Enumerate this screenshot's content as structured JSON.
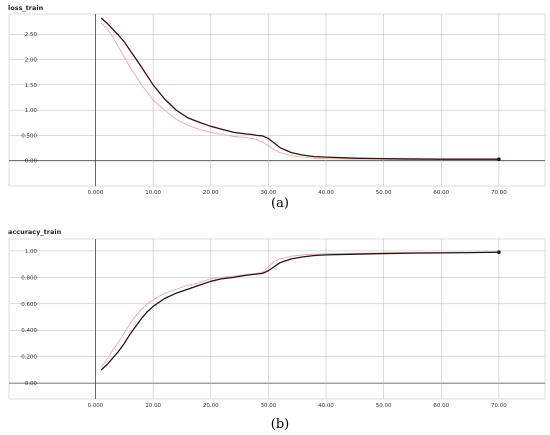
{
  "chart_data": [
    {
      "type": "line",
      "title": "loss_train",
      "caption": "(a)",
      "xlim": [
        -15,
        78
      ],
      "ylim": [
        -0.5,
        2.9
      ],
      "x_ticks": [
        0,
        10,
        20,
        30,
        40,
        50,
        60,
        70
      ],
      "x_tick_labels": [
        "0.000",
        "10.00",
        "20.00",
        "30.00",
        "40.00",
        "50.00",
        "60.00",
        "70.00"
      ],
      "y_ticks": [
        0,
        0.5,
        1.0,
        1.5,
        2.0,
        2.5
      ],
      "y_tick_labels": [
        "0.00",
        "0.500",
        "1.00",
        "1.50",
        "2.00",
        "2.50"
      ],
      "grid": true,
      "colors": {
        "main": "#3a0f0f",
        "raw": "#f0aaaa"
      },
      "series": [
        {
          "role": "smoothed",
          "x": [
            1,
            2,
            3,
            4,
            5,
            6,
            8,
            10,
            12,
            14,
            16,
            18,
            20,
            22,
            24,
            26,
            27,
            28,
            29,
            30,
            31,
            32,
            34,
            36,
            38,
            40,
            45,
            50,
            55,
            60,
            65,
            70
          ],
          "y": [
            2.82,
            2.72,
            2.6,
            2.48,
            2.35,
            2.18,
            1.85,
            1.5,
            1.22,
            1.0,
            0.85,
            0.76,
            0.68,
            0.62,
            0.56,
            0.53,
            0.52,
            0.5,
            0.49,
            0.44,
            0.35,
            0.26,
            0.16,
            0.11,
            0.08,
            0.07,
            0.05,
            0.04,
            0.035,
            0.03,
            0.03,
            0.03
          ]
        },
        {
          "role": "raw",
          "x": [
            1,
            2,
            3,
            4,
            5,
            6,
            8,
            10,
            12,
            14,
            16,
            18,
            20,
            22,
            24,
            26,
            28,
            29,
            30,
            31,
            32,
            34,
            36,
            38,
            40,
            45,
            50,
            55,
            60,
            65,
            70
          ],
          "y": [
            2.72,
            2.62,
            2.45,
            2.25,
            2.05,
            1.85,
            1.5,
            1.2,
            1.0,
            0.82,
            0.7,
            0.62,
            0.56,
            0.52,
            0.48,
            0.46,
            0.42,
            0.36,
            0.3,
            0.22,
            0.16,
            0.1,
            0.07,
            0.05,
            0.04,
            0.03,
            0.03,
            0.02,
            0.02,
            0.02,
            0.02
          ]
        }
      ]
    },
    {
      "type": "line",
      "title": "accuracy_train",
      "caption": "(b)",
      "xlim": [
        -15,
        78
      ],
      "ylim": [
        -0.12,
        1.09
      ],
      "x_ticks": [
        0,
        10,
        20,
        30,
        40,
        50,
        60,
        70
      ],
      "x_tick_labels": [
        "0.000",
        "10.00",
        "20.00",
        "30.00",
        "40.00",
        "50.00",
        "60.00",
        "70.00"
      ],
      "y_ticks": [
        0,
        0.2,
        0.4,
        0.6,
        0.8,
        1.0
      ],
      "y_tick_labels": [
        "0.00",
        "0.200",
        "0.400",
        "0.600",
        "0.800",
        "1.00"
      ],
      "grid": true,
      "colors": {
        "main": "#1a1a1a",
        "raw": "#f0aaaa"
      },
      "series": [
        {
          "role": "smoothed",
          "x": [
            1,
            2,
            3,
            4,
            5,
            6,
            7,
            8,
            9,
            10,
            12,
            14,
            16,
            18,
            20,
            22,
            24,
            26,
            28,
            29,
            30,
            31,
            32,
            34,
            36,
            38,
            40,
            45,
            50,
            55,
            60,
            65,
            70
          ],
          "y": [
            0.1,
            0.14,
            0.19,
            0.24,
            0.3,
            0.37,
            0.43,
            0.49,
            0.54,
            0.58,
            0.64,
            0.68,
            0.71,
            0.74,
            0.77,
            0.79,
            0.8,
            0.815,
            0.825,
            0.83,
            0.85,
            0.88,
            0.91,
            0.94,
            0.955,
            0.965,
            0.97,
            0.975,
            0.98,
            0.983,
            0.985,
            0.987,
            0.99
          ]
        },
        {
          "role": "raw",
          "x": [
            1,
            2,
            3,
            4,
            5,
            6,
            7,
            8,
            9,
            10,
            12,
            14,
            16,
            18,
            20,
            22,
            24,
            26,
            28,
            29,
            30,
            31,
            32,
            34,
            36,
            38,
            40,
            45,
            50,
            55,
            60,
            65,
            70
          ],
          "y": [
            0.12,
            0.18,
            0.25,
            0.31,
            0.38,
            0.45,
            0.51,
            0.56,
            0.6,
            0.63,
            0.68,
            0.71,
            0.74,
            0.76,
            0.79,
            0.8,
            0.81,
            0.82,
            0.83,
            0.84,
            0.88,
            0.92,
            0.94,
            0.96,
            0.97,
            0.975,
            0.98,
            0.982,
            0.985,
            0.987,
            0.988,
            0.99,
            0.992
          ]
        }
      ]
    }
  ]
}
